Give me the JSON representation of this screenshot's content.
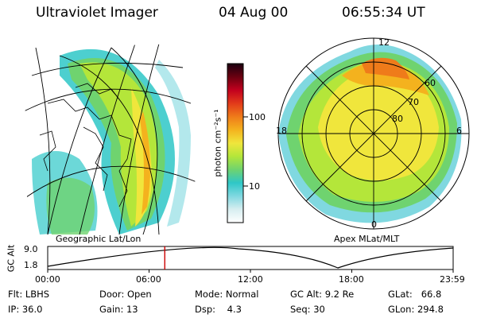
{
  "header": {
    "instrument": "Ultraviolet Imager",
    "date": "04 Aug 00",
    "time": "06:55:34 UT"
  },
  "panels": {
    "left_caption": "Geographic Lat/Lon",
    "right_caption": "Apex MLat/MLT"
  },
  "polar": {
    "mlt_labels": {
      "top": "12",
      "left": "18",
      "right": "6",
      "bottom": "0"
    },
    "lat_labels": [
      "60",
      "70",
      "80"
    ]
  },
  "colorbar": {
    "unit": "photon cm⁻²s⁻¹",
    "ticks": [
      "100",
      "10"
    ],
    "colors": [
      "#ffffff",
      "#d7eef0",
      "#80d8e0",
      "#2ec7c7",
      "#6fd36f",
      "#b4e63a",
      "#f0e63c",
      "#f4b21e",
      "#ef7b1a",
      "#e23a1a",
      "#c2001e",
      "#6a0010",
      "#1a0010"
    ]
  },
  "timeline": {
    "ylabel": "GC Alt",
    "yticks": [
      "9.0",
      "1.8"
    ],
    "xticks": [
      "00:00",
      "06:00",
      "12:00",
      "18:00",
      "23:59"
    ],
    "current_time_hours": 6.93,
    "marker_color": "#cc0000"
  },
  "footer": {
    "filter_label": "Flt:",
    "filter_value": "LBHS",
    "ip_label": "IP:",
    "ip_value": "36.0",
    "door_label": "Door:",
    "door_value": "Open",
    "gain_label": "Gain:",
    "gain_value": "13",
    "mode_label": "Mode:",
    "mode_value": "Normal",
    "dsp_label": "Dsp:",
    "dsp_value": "4.3",
    "gcalt_label": "GC Alt:",
    "gcalt_value": "9.2 Re",
    "seq_label": "Seq:",
    "seq_value": "30",
    "glat_label": "GLat:",
    "glat_value": "66.8",
    "glon_label": "GLon:",
    "glon_value": "294.8"
  }
}
